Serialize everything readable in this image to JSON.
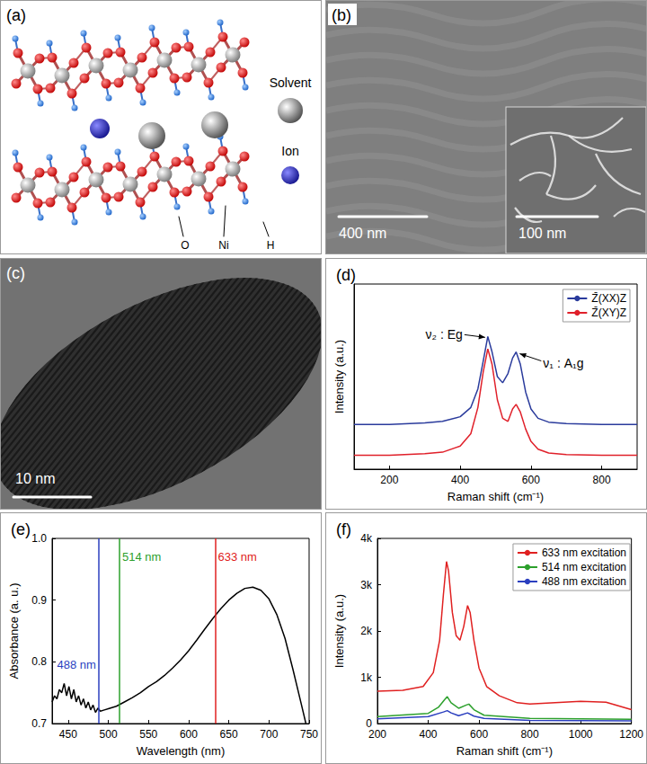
{
  "panels": [
    {
      "label": "(a)",
      "species": [
        "Solvent",
        "Ion"
      ],
      "atoms": [
        "O",
        "Ni",
        "H"
      ]
    },
    {
      "label": "(b)",
      "scale_bar": "400 nm",
      "inset_scale_bar": "100 nm"
    },
    {
      "label": "(c)",
      "scale_bar": "10 nm"
    }
  ],
  "chart_data": [
    {
      "type": "line",
      "title": "(d)",
      "x_label": "Raman shift (cm⁻¹)",
      "y_label": "Intensity (a.u.)",
      "xlim": [
        100,
        900
      ],
      "xticks": [
        200,
        400,
        600,
        800
      ],
      "ylim": [
        0,
        12
      ],
      "tick_labels": "x",
      "grid": false,
      "legend": "upper right",
      "x": [
        100,
        200,
        300,
        350,
        400,
        430,
        450,
        465,
        478,
        490,
        505,
        520,
        535,
        548,
        558,
        570,
        585,
        600,
        620,
        650,
        700,
        800,
        900
      ],
      "series": [
        {
          "name": "Z̄(XX)Z",
          "color": "#2a3b9c",
          "values": [
            2.9,
            2.9,
            3.0,
            3.1,
            3.4,
            4.0,
            5.2,
            7.0,
            8.6,
            7.6,
            6.0,
            5.6,
            6.2,
            7.2,
            7.6,
            6.8,
            5.0,
            3.9,
            3.3,
            3.05,
            2.95,
            2.9,
            2.9
          ]
        },
        {
          "name": "Z̄(XY)Z",
          "color": "#e0202a",
          "values": [
            0.9,
            0.9,
            1.0,
            1.1,
            1.5,
            2.3,
            4.0,
            6.3,
            7.8,
            6.8,
            4.5,
            3.3,
            3.1,
            3.9,
            4.2,
            3.7,
            2.6,
            1.8,
            1.3,
            1.05,
            0.95,
            0.9,
            0.9
          ]
        }
      ],
      "annotations": [
        {
          "text": "ν₂ : Eg",
          "x": 478
        },
        {
          "text": "ν₁ : A₁g",
          "x": 558
        }
      ]
    },
    {
      "type": "line",
      "title": "(e)",
      "x_label": "Wavelength (nm)",
      "y_label": "Absorbance (a. u.)",
      "xlim": [
        430,
        750
      ],
      "xticks": [
        450,
        500,
        550,
        600,
        650,
        700,
        750
      ],
      "ylim": [
        0.7,
        1.0
      ],
      "yticks": [
        0.7,
        0.8,
        0.9,
        {
          "value": 1.0,
          "label": "1.0"
        }
      ],
      "grid": false,
      "color": "#000000",
      "x": [
        430,
        433,
        436,
        439,
        442,
        445,
        448,
        451,
        454,
        457,
        460,
        463,
        466,
        469,
        472,
        475,
        478,
        481,
        484,
        487,
        490,
        495,
        500,
        510,
        520,
        530,
        540,
        550,
        560,
        570,
        580,
        590,
        600,
        610,
        620,
        630,
        640,
        650,
        660,
        670,
        680,
        690,
        700,
        710,
        720,
        730,
        740,
        746
      ],
      "values": [
        0.735,
        0.745,
        0.74,
        0.755,
        0.75,
        0.765,
        0.745,
        0.76,
        0.74,
        0.755,
        0.735,
        0.745,
        0.73,
        0.74,
        0.725,
        0.735,
        0.722,
        0.73,
        0.718,
        0.725,
        0.72,
        0.722,
        0.724,
        0.728,
        0.735,
        0.742,
        0.75,
        0.76,
        0.768,
        0.778,
        0.79,
        0.803,
        0.818,
        0.835,
        0.853,
        0.87,
        0.886,
        0.9,
        0.911,
        0.919,
        0.921,
        0.916,
        0.902,
        0.876,
        0.838,
        0.787,
        0.733,
        0.7
      ],
      "vlines": [
        {
          "text": "488 nm",
          "x": 488,
          "color": "#2b3fbf"
        },
        {
          "text": "514 nm",
          "x": 514,
          "color": "#2ca02c"
        },
        {
          "text": "633 nm",
          "x": 633,
          "color": "#e02020"
        }
      ]
    },
    {
      "type": "line",
      "title": "(f)",
      "x_label": "Raman shift (cm⁻¹)",
      "y_label": "Intensity (a.u.)",
      "xlim": [
        200,
        1200
      ],
      "xticks": [
        200,
        400,
        600,
        800,
        1000,
        1200
      ],
      "ylim": [
        0,
        4000
      ],
      "yticks": [
        0,
        {
          "value": 1000,
          "label": "1k"
        },
        {
          "value": 2000,
          "label": "2k"
        },
        {
          "value": 3000,
          "label": "3k"
        },
        {
          "value": 4000,
          "label": "4k"
        }
      ],
      "grid": false,
      "legend": "upper right",
      "series": [
        {
          "name": "633 nm excitation",
          "color": "#e02020",
          "x": [
            200,
            300,
            380,
            420,
            445,
            460,
            472,
            480,
            495,
            510,
            525,
            540,
            555,
            565,
            580,
            600,
            630,
            680,
            750,
            800,
            900,
            1000,
            1100,
            1200
          ],
          "values": [
            700,
            720,
            800,
            1100,
            1800,
            2800,
            3500,
            3300,
            2400,
            1900,
            1800,
            2100,
            2550,
            2400,
            1800,
            1200,
            800,
            600,
            450,
            420,
            450,
            480,
            460,
            300
          ]
        },
        {
          "name": "514 nm excitation",
          "color": "#2ca02c",
          "x": [
            200,
            400,
            440,
            465,
            475,
            490,
            520,
            550,
            560,
            580,
            620,
            800,
            1000,
            1200
          ],
          "values": [
            150,
            220,
            350,
            520,
            580,
            450,
            330,
            400,
            420,
            300,
            180,
            110,
            100,
            90
          ]
        },
        {
          "name": "488 nm excitation",
          "color": "#2b3fbf",
          "x": [
            200,
            400,
            460,
            475,
            490,
            520,
            555,
            580,
            620,
            800,
            1200
          ],
          "values": [
            100,
            150,
            250,
            280,
            230,
            170,
            230,
            160,
            110,
            70,
            60
          ]
        }
      ]
    }
  ]
}
